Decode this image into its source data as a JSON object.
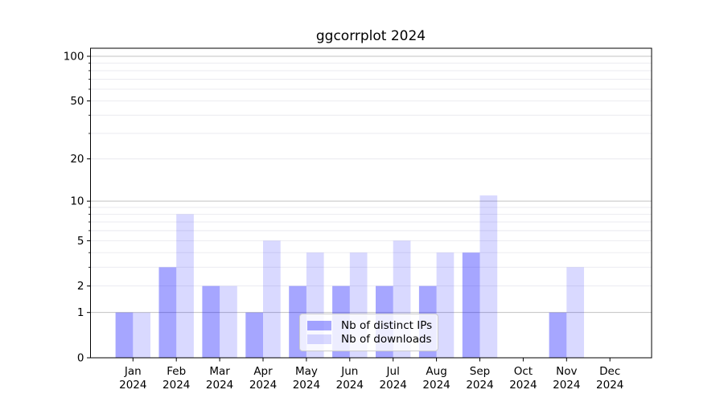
{
  "title": "ggcorrplot 2024",
  "chart_data": {
    "type": "bar",
    "title": "ggcorrplot 2024",
    "categories": [
      "Jan",
      "Feb",
      "Mar",
      "Apr",
      "May",
      "Jun",
      "Jul",
      "Aug",
      "Sep",
      "Oct",
      "Nov",
      "Dec"
    ],
    "year_label": "2024",
    "series": [
      {
        "name": "Nb of distinct IPs",
        "color": "#0000ff",
        "opacity": 0.35,
        "solid_hex": "#a6a6f7",
        "values": [
          1,
          3,
          2,
          1,
          2,
          2,
          2,
          2,
          4,
          0,
          1,
          0
        ]
      },
      {
        "name": "Nb of downloads",
        "color": "#0000ff",
        "opacity": 0.15,
        "solid_hex": "#dcdcfa",
        "values": [
          1,
          8,
          2,
          5,
          4,
          4,
          5,
          4,
          11,
          0,
          3,
          0
        ]
      }
    ],
    "xlabel": "",
    "ylabel": "",
    "yscale": "log1p",
    "ylim": [
      0,
      113
    ],
    "yticks": [
      0,
      1,
      2,
      5,
      10,
      20,
      50,
      100
    ],
    "major_gridlines": [
      1,
      10,
      100
    ],
    "minor_gridlines": [
      2,
      3,
      4,
      5,
      6,
      7,
      8,
      9,
      20,
      30,
      40,
      50,
      60,
      70,
      80,
      90
    ],
    "grid": true,
    "legend_position": "lower center"
  },
  "colors": {
    "background": "#ffffff",
    "axis": "#000000",
    "tick_label": "#000000",
    "grid_major": "#c3c3c3",
    "grid_minor": "#e9e9ef",
    "legend_border": "#cccccc"
  }
}
